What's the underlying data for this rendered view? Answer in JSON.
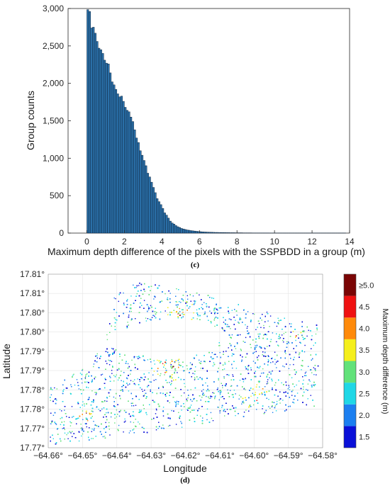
{
  "chart_data": [
    {
      "type": "bar",
      "panel_label": "(c)",
      "xlabel": "Maximum depth difference of the pixels with the SSPBDD in a group (m)",
      "ylabel": "Group counts",
      "xlim": [
        -1,
        14
      ],
      "ylim": [
        0,
        3000
      ],
      "x_ticks": [
        "0",
        "2",
        "4",
        "6",
        "8",
        "10",
        "12",
        "14"
      ],
      "y_ticks": [
        "0",
        "500",
        "1,000",
        "1,500",
        "2,000",
        "2,500",
        "3,000"
      ],
      "bin_width": 0.1,
      "bin_start": 0,
      "values": [
        2985,
        2960,
        2740,
        2750,
        2670,
        2560,
        2470,
        2450,
        2400,
        2310,
        2270,
        2260,
        2140,
        2020,
        1980,
        1920,
        1860,
        1820,
        1830,
        1760,
        1680,
        1640,
        1620,
        1550,
        1490,
        1380,
        1270,
        1210,
        1100,
        1040,
        970,
        900,
        800,
        750,
        680,
        610,
        540,
        460,
        420,
        380,
        330,
        270,
        240,
        200,
        160,
        135,
        120,
        100,
        85,
        75,
        62,
        55,
        48,
        42,
        38,
        33,
        30,
        27,
        24,
        21,
        19,
        17,
        15,
        14,
        13,
        12,
        11,
        10,
        9,
        9,
        8,
        8,
        7,
        7,
        6,
        6,
        5,
        5,
        5,
        4,
        4,
        4,
        4,
        3,
        3,
        3,
        3,
        3,
        2,
        2,
        2,
        2,
        2,
        2,
        2,
        2,
        2,
        1,
        1,
        1,
        1,
        1,
        1,
        1,
        1,
        1,
        1,
        1,
        1,
        1,
        1,
        1,
        1,
        1,
        1,
        1,
        1,
        1,
        1,
        1,
        1,
        1,
        1,
        1,
        1,
        1,
        1,
        1,
        1,
        1,
        1,
        1,
        1,
        1,
        1,
        1,
        1,
        1
      ],
      "bar_color": "#2a6fa8",
      "edge_color": "#0b1e33",
      "grid": false
    },
    {
      "type": "scatter",
      "panel_label": "(d)",
      "xlabel": "Longitude",
      "ylabel": "Latitude",
      "x_ticks": [
        "−64.66°",
        "−64.65°",
        "−64.64°",
        "−64.63°",
        "−64.62°",
        "−64.61°",
        "−64.60°",
        "−64.59°",
        "−64.58°"
      ],
      "y_ticks": [
        "17.77°",
        "17.77°",
        "17.78°",
        "17.78°",
        "17.79°",
        "17.79°",
        "17.80°",
        "17.80°",
        "17.81°",
        "17.81°"
      ],
      "grid": true,
      "colorbar": {
        "label": "Maximum depth difference (m)",
        "ticks": [
          "1.5",
          "2.0",
          "2.5",
          "3.0",
          "3.5",
          "4.0",
          "4.5",
          "≥5.0"
        ],
        "colors": [
          "#0a10d8",
          "#1c7ff0",
          "#1fd7e6",
          "#62e27a",
          "#f5ef1c",
          "#ff8a0a",
          "#ef1111",
          "#7a0505"
        ]
      }
    }
  ]
}
